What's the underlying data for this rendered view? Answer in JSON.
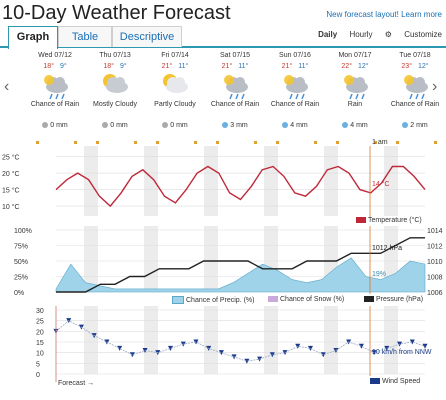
{
  "header": {
    "title": "10-Day Weather Forecast",
    "new_link": "New forecast layout! Learn more"
  },
  "tabs": [
    {
      "label": "Graph"
    },
    {
      "label": "Table"
    },
    {
      "label": "Descriptive"
    }
  ],
  "view_options": {
    "daily": "Daily",
    "hourly": "Hourly",
    "customize": "Customize"
  },
  "days": [
    {
      "date": "Wed 07/12",
      "high": "18°",
      "low": "9°",
      "condition": "Chance of Rain",
      "precip": "0 mm"
    },
    {
      "date": "Thu 07/13",
      "high": "18°",
      "low": "9°",
      "condition": "Mostly Cloudy",
      "precip": "0 mm"
    },
    {
      "date": "Fri 07/14",
      "high": "21°",
      "low": "11°",
      "condition": "Partly Cloudy",
      "precip": "0 mm"
    },
    {
      "date": "Sat 07/15",
      "high": "21°",
      "low": "11°",
      "condition": "Chance of Rain",
      "precip": "3 mm"
    },
    {
      "date": "Sun 07/16",
      "high": "21°",
      "low": "11°",
      "condition": "Chance of Rain",
      "precip": "4 mm"
    },
    {
      "date": "Mon 07/17",
      "high": "22°",
      "low": "12°",
      "condition": "Rain",
      "precip": "4 mm"
    },
    {
      "date": "Tue 07/18",
      "high": "23°",
      "low": "12°",
      "condition": "Chance of Rain",
      "precip": "2 mm"
    }
  ],
  "marker_time": "1 am",
  "temp_chart": {
    "yticks": [
      "25 °C",
      "20 °C",
      "15 °C",
      "10 °C"
    ],
    "readout": "14 °C",
    "legend": "Temperature (°C)"
  },
  "precip_chart": {
    "yticks_left": [
      "100%",
      "75%",
      "50%",
      "25%",
      "0%"
    ],
    "yticks_right": [
      "1014",
      "1012",
      "1010",
      "1008",
      "1006"
    ],
    "pressure_readout": "1012 hPa",
    "precip_readout": "19%",
    "legend_precip": "Chance of Precip. (%)",
    "legend_snow": "Chance of Snow (%)",
    "legend_pressure": "Pressure (hPa)"
  },
  "wind_chart": {
    "yticks": [
      "30",
      "25",
      "20",
      "15",
      "10",
      "5",
      "0"
    ],
    "readout": "10 km/h from NNW",
    "legend": "Wind Speed",
    "forecast_label": "Forecast →"
  },
  "colors": {
    "temp": "#c0283a",
    "precip": "#9fd3ea",
    "pressure": "#222222",
    "wind": "#1a3a8a",
    "accent": "#2b9ab0"
  },
  "chart_data": [
    {
      "type": "line",
      "ylabel": "",
      "series": [
        {
          "name": "Temperature (°C)",
          "values": [
            15,
            18,
            20,
            18,
            13,
            10,
            14,
            19,
            21,
            18,
            13,
            11,
            15,
            20,
            22,
            20,
            14,
            12,
            16,
            21,
            22,
            19,
            14,
            13,
            16,
            21,
            22,
            20,
            15,
            14,
            17,
            22,
            22,
            19,
            15
          ]
        }
      ],
      "ylim": [
        7,
        27
      ]
    },
    {
      "type": "line",
      "ylabel": "",
      "series": [
        {
          "name": "Pressure (hPa)",
          "values": [
            1006,
            1006,
            1006,
            1007,
            1007,
            1008,
            1008,
            1009,
            1009,
            1009,
            1010,
            1010,
            1010,
            1010,
            1009,
            1009,
            1009,
            1010,
            1010,
            1010,
            1011,
            1011,
            1011,
            1012,
            1013,
            1013
          ]
        },
        {
          "name": "Chance of Precip. (%)",
          "values": [
            5,
            45,
            15,
            10,
            5,
            5,
            5,
            5,
            5,
            5,
            5,
            5,
            15,
            30,
            45,
            35,
            20,
            15,
            20,
            40,
            55,
            25,
            20,
            30,
            50,
            45
          ]
        }
      ],
      "ylim": [
        1006,
        1014
      ]
    },
    {
      "type": "line",
      "ylabel": "",
      "series": [
        {
          "name": "Wind Speed",
          "values": [
            20,
            25,
            22,
            18,
            15,
            12,
            9,
            11,
            10,
            12,
            14,
            15,
            12,
            10,
            8,
            6,
            7,
            9,
            10,
            13,
            12,
            9,
            11,
            15,
            13,
            10,
            12,
            14,
            15,
            13
          ]
        }
      ],
      "ylim": [
        0,
        30
      ]
    }
  ]
}
